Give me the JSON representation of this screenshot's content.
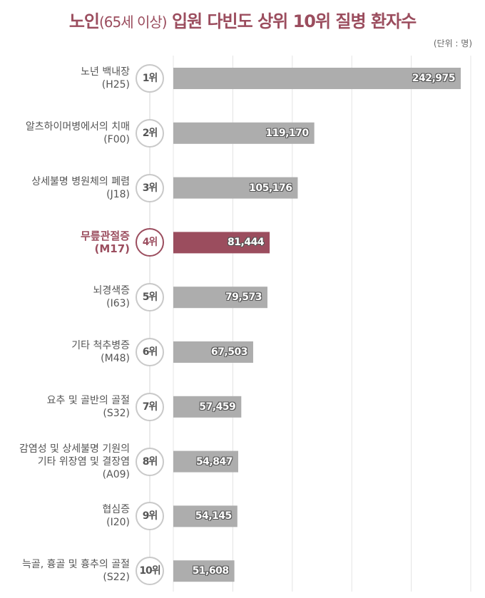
{
  "title_main": "노인",
  "title_sub": "(65세 이상)",
  "title_rest": " 입원 다빈도 상위 10위 질병 환자수",
  "unit": "(단위 : 명)",
  "colors": {
    "bar": "#adadad",
    "highlight": "#9b4d5e",
    "text": "#555555"
  },
  "chart_data": {
    "type": "bar",
    "orientation": "horizontal",
    "title": "노인(65세 이상) 입원 다빈도 상위 10위 질병 환자수",
    "unit": "(단위 : 명)",
    "grid": true,
    "highlight_index": 3,
    "categories": [
      {
        "lines": [
          "노년 백내장"
        ],
        "code": "(H25)",
        "rank": "1위",
        "value": 242975,
        "label": "242,975"
      },
      {
        "lines": [
          "알츠하이머병에서의 치매"
        ],
        "code": "(F00)",
        "rank": "2위",
        "value": 119170,
        "label": "119,170"
      },
      {
        "lines": [
          "상세불명 병원체의 폐렴"
        ],
        "code": "(J18)",
        "rank": "3위",
        "value": 105176,
        "label": "105,176"
      },
      {
        "lines": [
          "무릎관절증"
        ],
        "code": "(M17)",
        "rank": "4위",
        "value": 81444,
        "label": "81,444"
      },
      {
        "lines": [
          "뇌경색증"
        ],
        "code": "(I63)",
        "rank": "5위",
        "value": 79573,
        "label": "79,573"
      },
      {
        "lines": [
          "기타 척추병증"
        ],
        "code": "(M48)",
        "rank": "6위",
        "value": 67503,
        "label": "67,503"
      },
      {
        "lines": [
          "요추 및 골반의 골절"
        ],
        "code": "(S32)",
        "rank": "7위",
        "value": 57459,
        "label": "57,459"
      },
      {
        "lines": [
          "감염성 및 상세불명 기원의",
          "기타 위장염 및 결장염"
        ],
        "code": "(A09)",
        "rank": "8위",
        "value": 54847,
        "label": "54,847"
      },
      {
        "lines": [
          "협심증"
        ],
        "code": "(I20)",
        "rank": "9위",
        "value": 54145,
        "label": "54,145"
      },
      {
        "lines": [
          "늑골, 흉골 및 흉추의 골절"
        ],
        "code": "(S22)",
        "rank": "10위",
        "value": 51608,
        "label": "51,608"
      }
    ],
    "xlim": [
      0,
      250000
    ]
  }
}
